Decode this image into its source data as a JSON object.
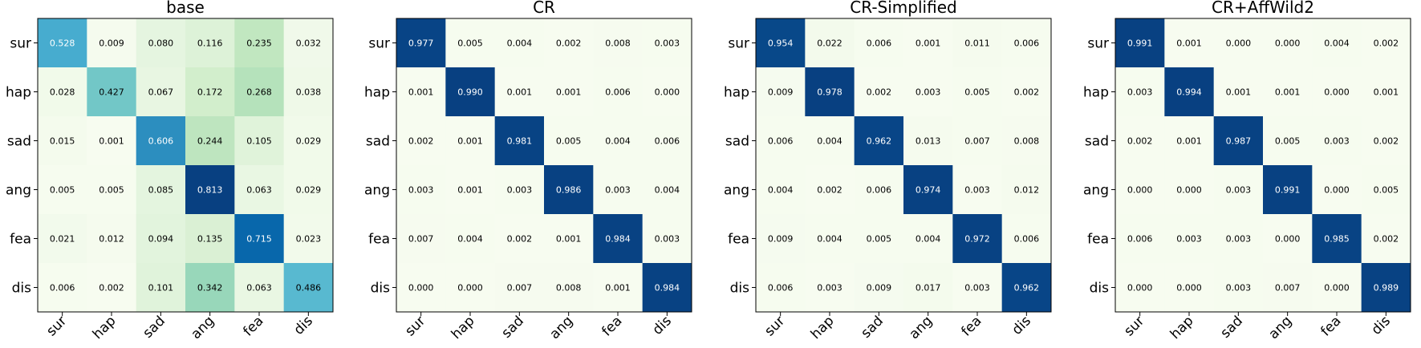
{
  "colormap": {
    "name": "GnBu",
    "stops": [
      "#f7fcf0",
      "#e0f3db",
      "#ccebc5",
      "#a8ddb5",
      "#7bccc4",
      "#4eb3d3",
      "#2b8cbe",
      "#0868ac",
      "#084081"
    ]
  },
  "chart_data": [
    {
      "type": "heatmap",
      "title": "base",
      "rows": [
        "sur",
        "hap",
        "sad",
        "ang",
        "fea",
        "dis"
      ],
      "cols": [
        "sur",
        "hap",
        "sad",
        "ang",
        "fea",
        "dis"
      ],
      "values": [
        [
          0.528,
          0.009,
          0.08,
          0.116,
          0.235,
          0.032
        ],
        [
          0.028,
          0.427,
          0.067,
          0.172,
          0.268,
          0.038
        ],
        [
          0.015,
          0.001,
          0.606,
          0.244,
          0.105,
          0.029
        ],
        [
          0.005,
          0.005,
          0.085,
          0.813,
          0.063,
          0.029
        ],
        [
          0.021,
          0.012,
          0.094,
          0.135,
          0.715,
          0.023
        ],
        [
          0.006,
          0.002,
          0.101,
          0.342,
          0.063,
          0.486
        ]
      ]
    },
    {
      "type": "heatmap",
      "title": "CR",
      "rows": [
        "sur",
        "hap",
        "sad",
        "ang",
        "fea",
        "dis"
      ],
      "cols": [
        "sur",
        "hap",
        "sad",
        "ang",
        "fea",
        "dis"
      ],
      "values": [
        [
          0.977,
          0.005,
          0.004,
          0.002,
          0.008,
          0.003
        ],
        [
          0.001,
          0.99,
          0.001,
          0.001,
          0.006,
          0.0
        ],
        [
          0.002,
          0.001,
          0.981,
          0.005,
          0.004,
          0.006
        ],
        [
          0.003,
          0.001,
          0.003,
          0.986,
          0.003,
          0.004
        ],
        [
          0.007,
          0.004,
          0.002,
          0.001,
          0.984,
          0.003
        ],
        [
          0.0,
          0.0,
          0.007,
          0.008,
          0.001,
          0.984
        ]
      ]
    },
    {
      "type": "heatmap",
      "title": "CR-Simplified",
      "rows": [
        "sur",
        "hap",
        "sad",
        "ang",
        "fea",
        "dis"
      ],
      "cols": [
        "sur",
        "hap",
        "sad",
        "ang",
        "fea",
        "dis"
      ],
      "values": [
        [
          0.954,
          0.022,
          0.006,
          0.001,
          0.011,
          0.006
        ],
        [
          0.009,
          0.978,
          0.002,
          0.003,
          0.005,
          0.002
        ],
        [
          0.006,
          0.004,
          0.962,
          0.013,
          0.007,
          0.008
        ],
        [
          0.004,
          0.002,
          0.006,
          0.974,
          0.003,
          0.012
        ],
        [
          0.009,
          0.004,
          0.005,
          0.004,
          0.972,
          0.006
        ],
        [
          0.006,
          0.003,
          0.009,
          0.017,
          0.003,
          0.962
        ]
      ]
    },
    {
      "type": "heatmap",
      "title": "CR+AffWild2",
      "rows": [
        "sur",
        "hap",
        "sad",
        "ang",
        "fea",
        "dis"
      ],
      "cols": [
        "sur",
        "hap",
        "sad",
        "ang",
        "fea",
        "dis"
      ],
      "values": [
        [
          0.991,
          0.001,
          0.0,
          0.0,
          0.004,
          0.002
        ],
        [
          0.003,
          0.994,
          0.001,
          0.001,
          0.0,
          0.001
        ],
        [
          0.002,
          0.001,
          0.987,
          0.005,
          0.003,
          0.002
        ],
        [
          0.0,
          0.0,
          0.003,
          0.991,
          0.0,
          0.005
        ],
        [
          0.006,
          0.003,
          0.003,
          0.0,
          0.985,
          0.002
        ],
        [
          0.0,
          0.0,
          0.003,
          0.007,
          0.0,
          0.989
        ]
      ]
    }
  ]
}
